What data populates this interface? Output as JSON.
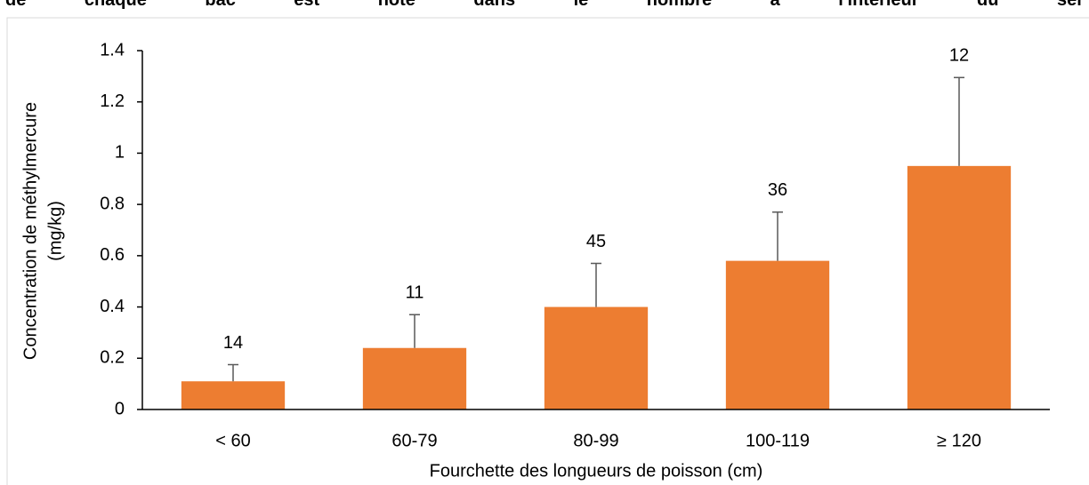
{
  "caption": "de chaque bac est noté dans le nombre à l'intérieur du ser",
  "chart_data": {
    "type": "bar",
    "y_label": [
      "Concentration de méthylmercure",
      "(mg/kg)"
    ],
    "x_label": "Fourchette des longueurs de poisson (cm)",
    "categories": [
      "< 60",
      "60-79",
      "80-99",
      "100-119",
      "≥ 120"
    ],
    "values": [
      0.11,
      0.24,
      0.4,
      0.58,
      0.95
    ],
    "errors": [
      0.065,
      0.13,
      0.17,
      0.19,
      0.345
    ],
    "sample_sizes": [
      14,
      11,
      45,
      36,
      12
    ],
    "color": "#ed7d31",
    "error_color": "#595959",
    "ylim": [
      0,
      1.4
    ],
    "yticks": [
      0,
      0.2,
      0.4,
      0.6,
      0.8,
      1,
      1.2,
      1.4
    ],
    "grid": false
  }
}
